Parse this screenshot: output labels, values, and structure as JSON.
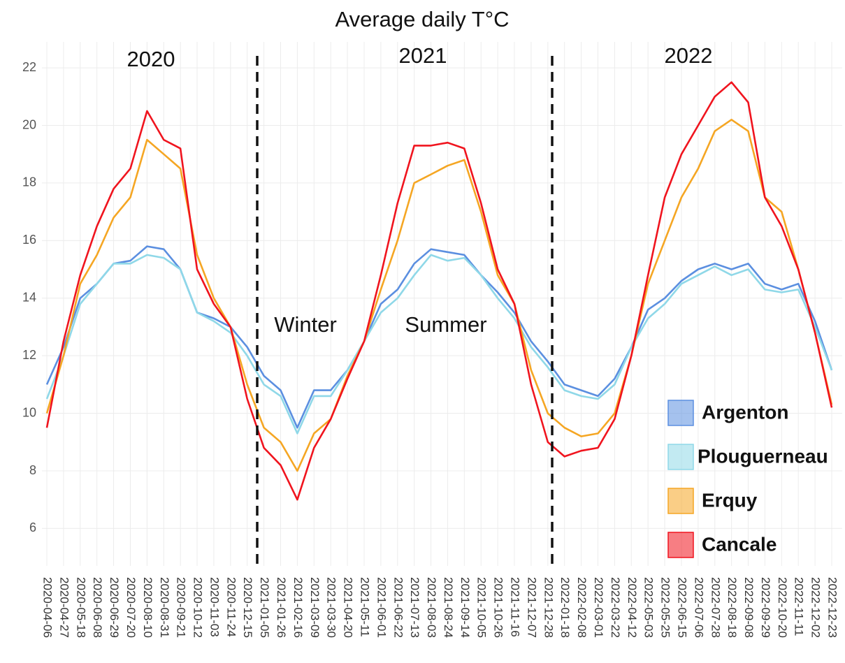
{
  "chart_data": {
    "type": "line",
    "title": "Average daily T°C",
    "annotations": [
      "2020",
      "2021",
      "2022",
      "Winter",
      "Summer"
    ],
    "categories": [
      "2020-04-06",
      "2020-04-27",
      "2020-05-18",
      "2020-06-08",
      "2020-06-29",
      "2020-07-20",
      "2020-08-10",
      "2020-08-31",
      "2020-09-21",
      "2020-10-12",
      "2020-11-03",
      "2020-11-24",
      "2020-12-15",
      "2021-01-05",
      "2021-01-26",
      "2021-02-16",
      "2021-03-09",
      "2021-03-30",
      "2021-04-20",
      "2021-05-11",
      "2021-06-01",
      "2021-06-22",
      "2021-07-13",
      "2021-08-03",
      "2021-08-24",
      "2021-09-14",
      "2021-10-05",
      "2021-10-26",
      "2021-11-16",
      "2021-12-07",
      "2021-12-28",
      "2022-01-18",
      "2022-02-08",
      "2022-03-01",
      "2022-03-22",
      "2022-04-12",
      "2022-05-03",
      "2022-05-25",
      "2022-06-15",
      "2022-07-06",
      "2022-07-28",
      "2022-08-18",
      "2022-09-08",
      "2022-09-29",
      "2022-10-20",
      "2022-11-11",
      "2022-12-02",
      "2022-12-23"
    ],
    "series": [
      {
        "name": "Argenton",
        "color": "#5b8fe0",
        "values": [
          11.0,
          12.3,
          14.0,
          14.5,
          15.2,
          15.3,
          15.8,
          15.7,
          15.0,
          13.5,
          13.3,
          13.0,
          12.3,
          11.3,
          10.8,
          9.5,
          10.8,
          10.8,
          11.5,
          12.5,
          13.8,
          14.3,
          15.2,
          15.7,
          15.6,
          15.5,
          14.8,
          14.2,
          13.5,
          12.5,
          11.8,
          11.0,
          10.8,
          10.6,
          11.2,
          12.3,
          13.6,
          14.0,
          14.6,
          15.0,
          15.2,
          15.0,
          15.2,
          14.5,
          14.3,
          14.5,
          13.2,
          11.5
        ]
      },
      {
        "name": "Plouguerneau",
        "color": "#8fd8e8",
        "values": [
          10.5,
          12.0,
          13.8,
          14.5,
          15.2,
          15.2,
          15.5,
          15.4,
          15.0,
          13.5,
          13.2,
          12.8,
          12.0,
          11.0,
          10.6,
          9.3,
          10.6,
          10.6,
          11.5,
          12.5,
          13.5,
          14.0,
          14.8,
          15.5,
          15.3,
          15.4,
          14.8,
          14.0,
          13.3,
          12.3,
          11.6,
          10.8,
          10.6,
          10.5,
          11.0,
          12.3,
          13.3,
          13.8,
          14.5,
          14.8,
          15.1,
          14.8,
          15.0,
          14.3,
          14.2,
          14.3,
          13.0,
          11.5
        ]
      },
      {
        "name": "Erquy",
        "color": "#f5a623",
        "values": [
          10.0,
          12.0,
          14.5,
          15.5,
          16.8,
          17.5,
          19.5,
          19.0,
          18.5,
          15.5,
          14.0,
          13.0,
          11.0,
          9.5,
          9.0,
          8.0,
          9.3,
          9.8,
          11.3,
          12.5,
          14.3,
          16.0,
          18.0,
          18.3,
          18.6,
          18.8,
          17.0,
          14.8,
          13.8,
          11.5,
          10.0,
          9.5,
          9.2,
          9.3,
          10.0,
          12.0,
          14.5,
          16.0,
          17.5,
          18.5,
          19.8,
          20.2,
          19.8,
          17.5,
          17.0,
          15.0,
          12.8,
          10.3
        ]
      },
      {
        "name": "Cancale",
        "color": "#f0141e",
        "values": [
          9.5,
          12.5,
          14.8,
          16.5,
          17.8,
          18.5,
          20.5,
          19.5,
          19.2,
          15.0,
          13.8,
          13.0,
          10.5,
          8.8,
          8.2,
          7.0,
          8.8,
          9.8,
          11.2,
          12.5,
          14.8,
          17.3,
          19.3,
          19.3,
          19.4,
          19.2,
          17.3,
          15.0,
          13.8,
          11.0,
          9.0,
          8.5,
          8.7,
          8.8,
          9.8,
          12.0,
          14.8,
          17.5,
          19.0,
          20.0,
          21.0,
          21.5,
          20.8,
          17.5,
          16.5,
          15.0,
          12.8,
          10.2
        ]
      }
    ],
    "ylim": [
      4.7,
      22.9
    ],
    "yticks": [
      6,
      8,
      10,
      12,
      14,
      16,
      18,
      20,
      22
    ],
    "grid": true,
    "legend": "lower right"
  }
}
